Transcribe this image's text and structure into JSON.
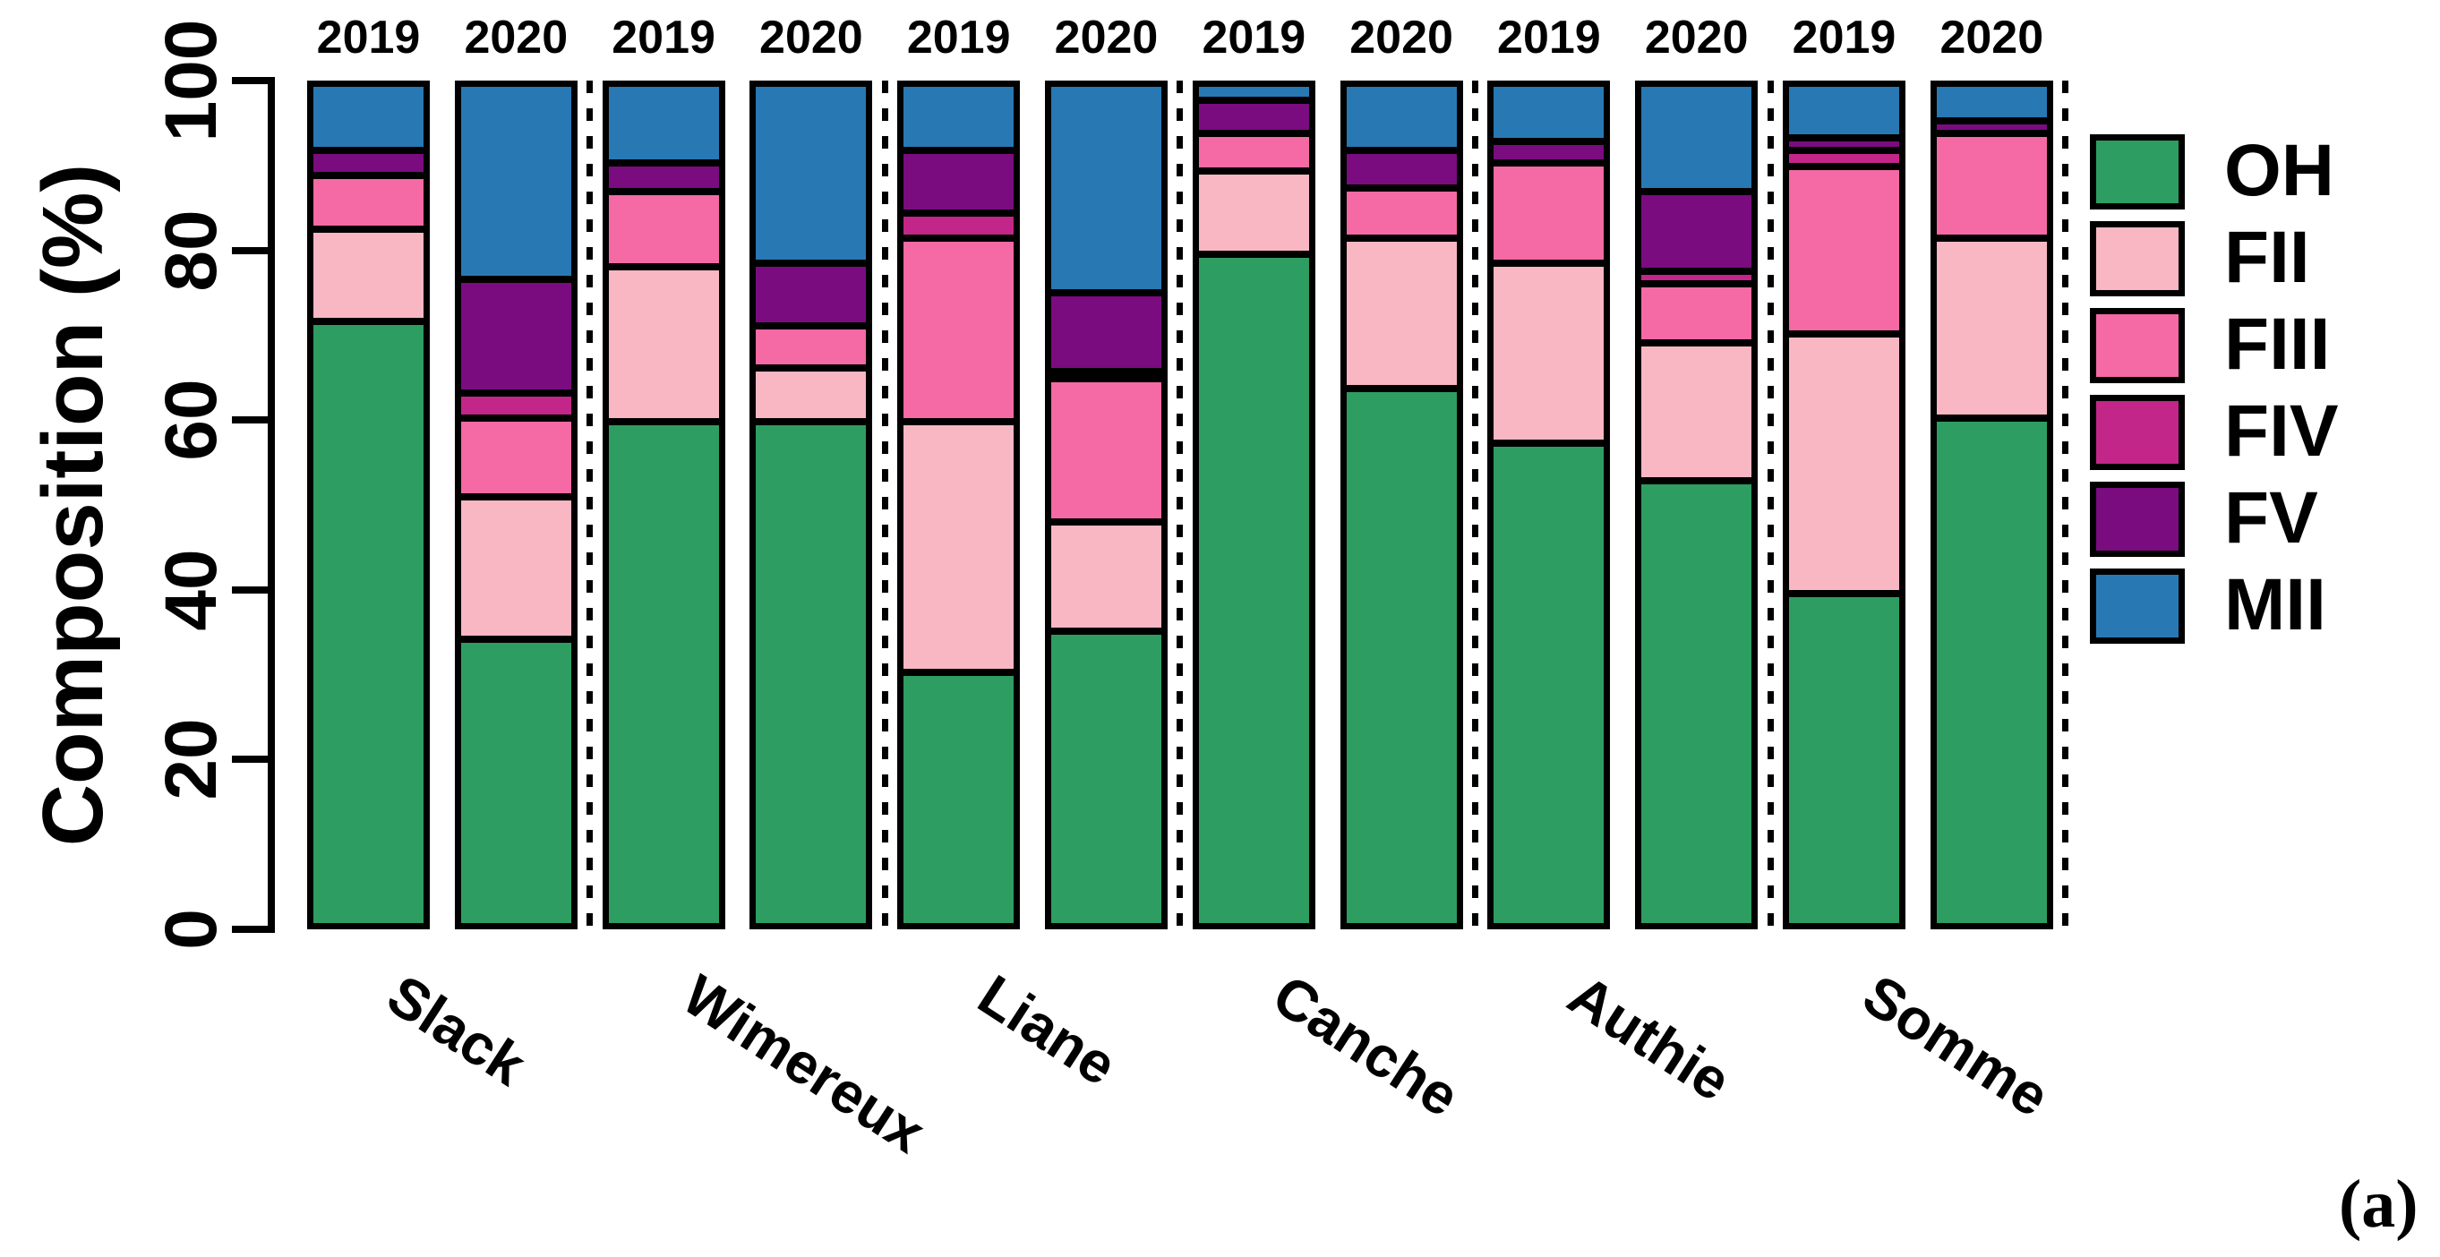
{
  "chart_data": {
    "type": "bar",
    "stacked": true,
    "title": "",
    "ylabel": "Composition (%)",
    "xlabel": "",
    "ylim": [
      0,
      100
    ],
    "yticks": [
      0,
      20,
      40,
      60,
      80,
      100
    ],
    "grid": false,
    "legend_position": "right",
    "groups": [
      "Slack",
      "Wimereux",
      "Liane",
      "Canche",
      "Authie",
      "Somme"
    ],
    "years": [
      "2019",
      "2020"
    ],
    "categories": [
      "Slack 2019",
      "Slack 2020",
      "Wimereux 2019",
      "Wimereux 2020",
      "Liane 2019",
      "Liane 2020",
      "Canche 2019",
      "Canche 2020",
      "Authie 2019",
      "Authie 2020",
      "Somme 2019",
      "Somme 2020"
    ],
    "series": [
      {
        "name": "OH",
        "color": "#2E9D62",
        "values": [
          71.5,
          33.5,
          59.5,
          59.5,
          29.5,
          34.5,
          79.5,
          63.5,
          57.0,
          52.5,
          39.0,
          60.0
        ]
      },
      {
        "name": "FII",
        "color": "#F8B7C3",
        "values": [
          11.0,
          17.0,
          18.5,
          6.5,
          30.0,
          13.0,
          10.0,
          18.0,
          21.5,
          16.5,
          31.0,
          21.5
        ]
      },
      {
        "name": "FIII",
        "color": "#F569A5",
        "values": [
          6.5,
          9.5,
          9.0,
          5.0,
          22.0,
          17.5,
          4.5,
          6.0,
          12.0,
          7.0,
          20.0,
          12.5
        ]
      },
      {
        "name": "FIV",
        "color": "#C22688",
        "values": [
          0,
          3.0,
          0,
          0,
          3.0,
          0.5,
          0,
          0,
          0,
          1.5,
          2.0,
          0
        ]
      },
      {
        "name": "FV",
        "color": "#7A0C80",
        "values": [
          3.0,
          13.5,
          3.5,
          7.5,
          7.5,
          9.5,
          4.0,
          4.5,
          2.5,
          9.5,
          1.5,
          1.5
        ]
      },
      {
        "name": "MII",
        "color": "#2878B4",
        "values": [
          8.0,
          23.5,
          9.5,
          21.5,
          8.0,
          25.0,
          2.0,
          8.0,
          7.0,
          13.0,
          6.5,
          4.5
        ]
      }
    ],
    "annotation": "(a)"
  }
}
